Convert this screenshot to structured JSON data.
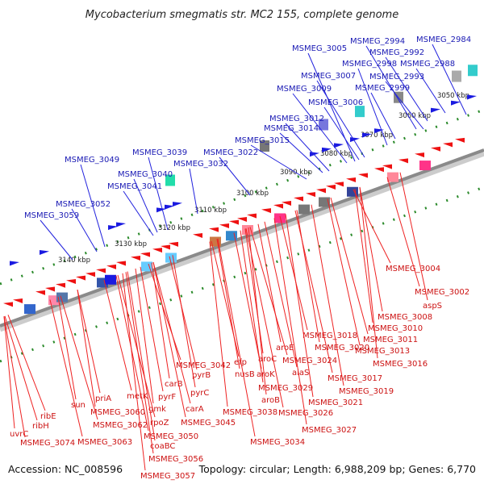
{
  "title": "Mycobacterium smegmatis str. MC2 155, complete genome",
  "accession": "Accession: NC_008596",
  "topology": "Topology: circular; Length: 6,988,209 bp; Genes: 6,770",
  "kbp_marks": [
    "3050 kbp",
    "3060 kbp",
    "3070 kbp",
    "3080 kbp",
    "3090 kbp",
    "3100 kbp",
    "3110 kbp",
    "3120 kbp",
    "3130 kbp",
    "3140 kbp"
  ],
  "top_genes": [
    "MSMEG_2984",
    "MSMEG_2994",
    "MSMEG_2992",
    "MSMEG_2988",
    "MSMEG_2998",
    "MSMEG_2993",
    "MSMEG_2999",
    "MSMEG_3005",
    "MSMEG_3007",
    "MSMEG_3009",
    "MSMEG_3006",
    "MSMEG_3012",
    "MSMEG_3014",
    "MSMEG_3015",
    "MSMEG_3022",
    "MSMEG_3039",
    "MSMEG_3032",
    "MSMEG_3049",
    "MSMEG_3040",
    "MSMEG_3041",
    "MSMEG_3052",
    "MSMEG_3059"
  ],
  "bottom_genes": [
    "MSMEG_3004",
    "MSMEG_3002",
    "aspS",
    "MSMEG_3008",
    "MSMEG_3010",
    "MSMEG_3011",
    "MSMEG_3013",
    "MSMEG_3018",
    "MSMEG_3020",
    "MSMEG_3016",
    "MSMEG_3017",
    "MSMEG_3019",
    "MSMEG_3021",
    "aroE",
    "aroC",
    "MSMEG_3024",
    "alaS",
    "aroK",
    "MSMEG_3029",
    "aroB",
    "MSMEG_3026",
    "MSMEG_3027",
    "efp",
    "nusB",
    "MSMEG_3038",
    "MSMEG_3034",
    "MSMEG_3042",
    "pyrB",
    "pyrC",
    "carB",
    "carA",
    "MSMEG_3045",
    "metK",
    "pyrF",
    "gmk",
    "rpoZ",
    "MSMEG_3050",
    "coaBC",
    "priA",
    "MSMEG_3060",
    "MSMEG_3062",
    "MSMEG_3063",
    "MSMEG_3056",
    "MSMEG_3057",
    "sun",
    "ribE",
    "ribH",
    "uvrC",
    "MSMEG_3074"
  ],
  "colors": {
    "plus_strand": "#1111dd",
    "minus_strand": "#ee1111",
    "axis": "#888888",
    "tick": "#2a8a2a",
    "top_label": "#1a1ab4",
    "bottom_label": "#cc1111"
  }
}
